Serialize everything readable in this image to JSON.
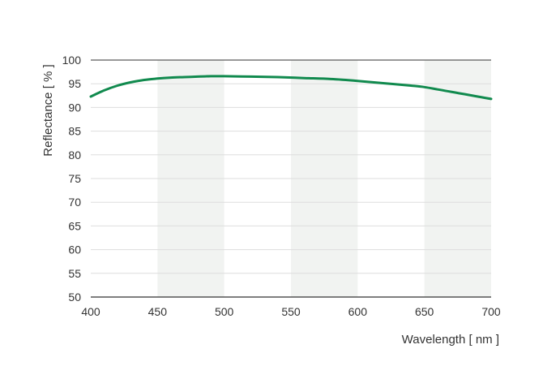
{
  "chart_data": {
    "type": "line",
    "title": "",
    "xlabel": "Wavelength [ nm ]",
    "ylabel": "Reflectance [ % ]",
    "xlim": [
      400,
      700
    ],
    "ylim": [
      50,
      100
    ],
    "x_ticks": [
      400,
      450,
      500,
      550,
      600,
      650,
      700
    ],
    "y_ticks": [
      50,
      55,
      60,
      65,
      70,
      75,
      80,
      85,
      90,
      95,
      100
    ],
    "grid": "horizontal",
    "shaded_bands": [
      [
        450,
        500
      ],
      [
        550,
        600
      ],
      [
        650,
        700
      ]
    ],
    "colors": {
      "series": "#118a4e",
      "band": "#f1f3f1",
      "grid": "#dddddd",
      "axis": "#333333"
    },
    "series": [
      {
        "x": [
          400,
          410,
          420,
          430,
          440,
          450,
          460,
          470,
          480,
          490,
          500,
          520,
          540,
          560,
          580,
          600,
          620,
          640,
          650,
          660,
          670,
          680,
          690,
          700
        ],
        "values": [
          92.3,
          93.6,
          94.6,
          95.3,
          95.8,
          96.1,
          96.3,
          96.4,
          96.5,
          96.6,
          96.6,
          96.5,
          96.4,
          96.2,
          96.0,
          95.6,
          95.1,
          94.6,
          94.3,
          93.8,
          93.3,
          92.8,
          92.3,
          91.8
        ]
      }
    ]
  }
}
